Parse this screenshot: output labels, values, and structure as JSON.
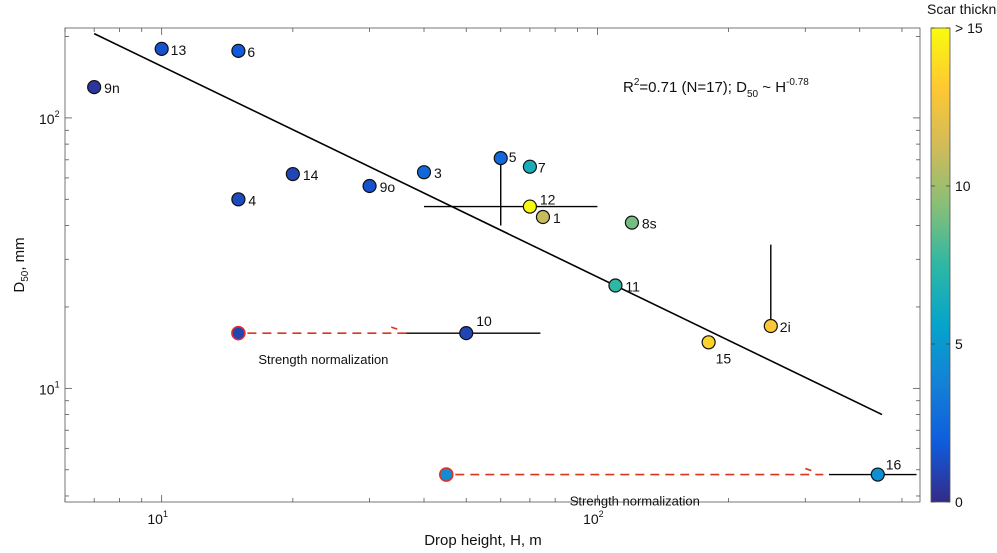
{
  "chart_data": {
    "type": "scatter",
    "xlabel": "Drop height, H, m",
    "ylabel": "D",
    "ylabel_sub": "50",
    "ylabel_tail": ", mm",
    "xscale": "log",
    "yscale": "log",
    "xlim": [
      6,
      550
    ],
    "ylim": [
      3.8,
      215
    ],
    "grid": false,
    "x_ticks": [
      {
        "value": 10,
        "base": "10",
        "exp": "1"
      },
      {
        "value": 100,
        "base": "10",
        "exp": "2"
      }
    ],
    "y_ticks": [
      {
        "value": 10,
        "base": "10",
        "exp": "1"
      },
      {
        "value": 100,
        "base": "10",
        "exp": "2"
      }
    ],
    "annotation": {
      "r2_prefix": "R",
      "r2_sup": "2",
      "r2_text": "=0.71 (N=17); D",
      "d_sub": "50",
      "sim": " ~ H",
      "h_sup": "-0.78"
    },
    "fit_line": {
      "x": [
        7,
        450
      ],
      "y": [
        205,
        8
      ]
    },
    "colorbar": {
      "title": "Scar thickness, m",
      "min": 0,
      "max": 15,
      "ticks": [
        {
          "value": 0,
          "label": "0"
        },
        {
          "value": 5,
          "label": "5"
        },
        {
          "value": 10,
          "label": "10"
        },
        {
          "value": 15,
          "label": "> 15"
        }
      ]
    },
    "points": [
      {
        "label": "13",
        "x": 10,
        "y": 180,
        "z": 1.5
      },
      {
        "label": "6",
        "x": 15,
        "y": 177,
        "z": 1.8
      },
      {
        "label": "9n",
        "x": 7,
        "y": 130,
        "z": 0.5
      },
      {
        "label": "14",
        "x": 20,
        "y": 62,
        "z": 1.0
      },
      {
        "label": "9o",
        "x": 30,
        "y": 56,
        "z": 1.5
      },
      {
        "label": "3",
        "x": 40,
        "y": 63,
        "z": 2.5
      },
      {
        "label": "4",
        "x": 15,
        "y": 50,
        "z": 1.2
      },
      {
        "label": "5",
        "x": 60,
        "y": 71,
        "z": 2.5
      },
      {
        "label": "7",
        "x": 70,
        "y": 66,
        "z": 6.5
      },
      {
        "label": "12",
        "x": 70,
        "y": 47,
        "z": 15
      },
      {
        "label": "1",
        "x": 75,
        "y": 43,
        "z": 11
      },
      {
        "label": "8s",
        "x": 120,
        "y": 41,
        "z": 9
      },
      {
        "label": "11",
        "x": 110,
        "y": 24,
        "z": 7.5
      },
      {
        "label": "2i",
        "x": 250,
        "y": 17,
        "z": 13
      },
      {
        "label": "10",
        "x": 50,
        "y": 16,
        "z": 1.0
      },
      {
        "label": "15",
        "x": 180,
        "y": 14.8,
        "z": 13.5
      },
      {
        "label": "16",
        "x": 440,
        "y": 4.8,
        "z": 4.5
      }
    ],
    "error_bars": [
      {
        "orientation": "vertical",
        "x": 60,
        "from": 40,
        "to": 71
      },
      {
        "orientation": "horizontal",
        "y": 47,
        "from": 40,
        "to": 100
      },
      {
        "orientation": "vertical",
        "x": 250,
        "from": 17,
        "to": 34
      },
      {
        "orientation": "horizontal",
        "y": 16,
        "from": 35,
        "to": 74
      },
      {
        "orientation": "horizontal",
        "y": 4.8,
        "from": 340,
        "to": 540
      }
    ],
    "normalizations": [
      {
        "label": "Strength normalization",
        "from_x": 15,
        "to_x": 37,
        "y": 16,
        "z": 1.0
      },
      {
        "label": "Strength normalization",
        "from_x": 45,
        "to_x": 330,
        "y": 4.8,
        "z": 4.5
      }
    ],
    "colors": {
      "arrow": "#d9361e",
      "ring": "#e0302a",
      "fit": "#000000",
      "axis": "#555555",
      "colormap": [
        "#352a87",
        "#0f5cdd",
        "#1481d6",
        "#06a4ca",
        "#2eb7a4",
        "#87bf77",
        "#d1bb59",
        "#fec832",
        "#f9fb0e"
      ]
    }
  }
}
